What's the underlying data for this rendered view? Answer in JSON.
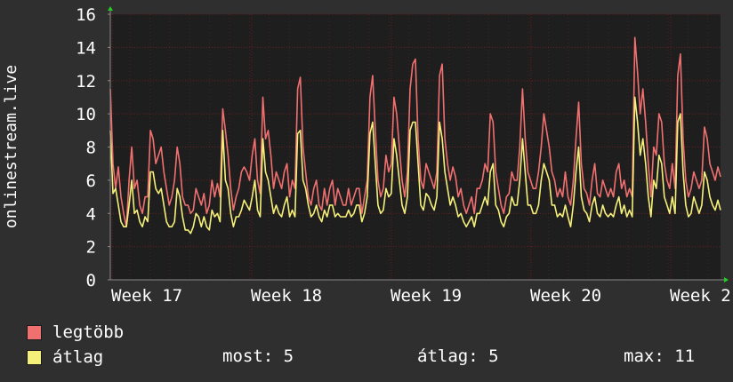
{
  "chart_data": {
    "type": "line",
    "ylabel": "onlinestream.live",
    "ylim": [
      0,
      16
    ],
    "y_ticks": [
      "0",
      "2",
      "4",
      "6",
      "8",
      "10",
      "12",
      "14",
      "16"
    ],
    "x_ticks": [
      "Week 17",
      "Week 18",
      "Week 19",
      "Week 20",
      "Week 2"
    ],
    "grid": true,
    "background": "#1e1e1e",
    "grid_color": "#6a1f1f",
    "axis_color": "#8a8a8a",
    "series": [
      {
        "name": "legtöbb",
        "color": "#f07070",
        "values": [
          11.5,
          7,
          5.5,
          6.8,
          5,
          4,
          3.2,
          6,
          8,
          5.5,
          6,
          4.5,
          4,
          5,
          5,
          9,
          8.5,
          7,
          7.5,
          8,
          6.5,
          5.5,
          4.5,
          5,
          6,
          8,
          7,
          5,
          4.5,
          4.5,
          4,
          4.2,
          5.5,
          5,
          4.5,
          5.2,
          4,
          4.5,
          6,
          5,
          5.8,
          5,
          10.3,
          9,
          7.5,
          5.5,
          4.2,
          5,
          5.5,
          6.5,
          6.8,
          6.5,
          6,
          7.5,
          8.5,
          6,
          5.2,
          11,
          8.5,
          9,
          7.5,
          5.5,
          6.5,
          6,
          5.5,
          6.5,
          7,
          5,
          6,
          5.5,
          11.5,
          12.2,
          8,
          6.5,
          5,
          4.5,
          5.5,
          6,
          4.5,
          4.2,
          5.5,
          4.5,
          5.5,
          6,
          4.5,
          5.5,
          5,
          4.5,
          4.5,
          5.5,
          4.5,
          5,
          5.5,
          5.5,
          4,
          5,
          6,
          11,
          12.3,
          9,
          6,
          5,
          5.5,
          7.5,
          6.5,
          7,
          11,
          10,
          8,
          6,
          5,
          6.5,
          11.5,
          13,
          13.3,
          8.5,
          6,
          5.5,
          7,
          6.5,
          6,
          5.5,
          6.5,
          12.3,
          13,
          8.5,
          7,
          6,
          6.8,
          6.2,
          5,
          5.5,
          4.5,
          4,
          4.5,
          5,
          4,
          5.5,
          5.5,
          6,
          7,
          6.5,
          10,
          9.5,
          6.5,
          5.5,
          4.5,
          4,
          5,
          5.2,
          6.5,
          6,
          6,
          8,
          11.5,
          8.5,
          6.5,
          6,
          5.5,
          5.5,
          6.5,
          8,
          10,
          9,
          8,
          6.5,
          6,
          5,
          5.5,
          5,
          6.5,
          5,
          4.5,
          6,
          8.5,
          10.7,
          7,
          5.5,
          5.2,
          4.5,
          6,
          7,
          5.2,
          5,
          6,
          5.5,
          5,
          5.5,
          5,
          6.5,
          7,
          5.5,
          6,
          5,
          5.5,
          5,
          14.6,
          12.5,
          10,
          11.5,
          9.5,
          7,
          5,
          8,
          7.5,
          10,
          9.5,
          7,
          6,
          5.5,
          7,
          5.5,
          12.3,
          13.6,
          8.5,
          6,
          5,
          5.5,
          6.5,
          6,
          5.5,
          6,
          9.2,
          8.5,
          7,
          6.5,
          6,
          6.8,
          6.2
        ]
      },
      {
        "name": "átlag",
        "color": "#f5f07a",
        "values": [
          9,
          5.2,
          5.5,
          4.5,
          3.5,
          3.2,
          3.2,
          4.5,
          6,
          4,
          4.2,
          3.5,
          3.2,
          3.8,
          3.5,
          6.5,
          6.5,
          5.5,
          5.2,
          5.5,
          4.5,
          3.5,
          3.2,
          3.2,
          3.5,
          5.5,
          5,
          3.8,
          3,
          3,
          2.8,
          3.2,
          4,
          3.8,
          3.2,
          3.8,
          3.2,
          3,
          4.2,
          3.8,
          4,
          3.5,
          9,
          6,
          5.5,
          4,
          3.2,
          3.8,
          3.8,
          4.2,
          4.8,
          4.5,
          4.2,
          5,
          6,
          4.2,
          3.8,
          8.5,
          6.5,
          6,
          5,
          4,
          4.5,
          4,
          3.8,
          4.5,
          5,
          3.8,
          4.2,
          3.8,
          8.8,
          9,
          6,
          5.5,
          4.5,
          3.8,
          4,
          4.5,
          3.8,
          3.5,
          4.2,
          3.8,
          4.5,
          4.5,
          3.8,
          4,
          3.8,
          3.8,
          3.8,
          4.2,
          3.8,
          4,
          4.5,
          4.5,
          3.5,
          4,
          5,
          8.8,
          9.5,
          7,
          4.5,
          4,
          4.2,
          5.5,
          5,
          5.2,
          8.5,
          7.5,
          6,
          4.5,
          4,
          5,
          9,
          9.5,
          9.5,
          7,
          4.5,
          4.2,
          5.2,
          5,
          4.5,
          4.2,
          5,
          9.5,
          8.5,
          6.5,
          5.5,
          4.5,
          5,
          4.5,
          3.8,
          4,
          3.5,
          3.2,
          3.5,
          3.8,
          3.2,
          4,
          4,
          4.5,
          5,
          4.5,
          6.5,
          7,
          4.5,
          4.2,
          3.5,
          3.2,
          3.8,
          4,
          5,
          4.5,
          4.5,
          6,
          8.5,
          6.5,
          4.5,
          4.5,
          4,
          4,
          4.5,
          6,
          7,
          6.5,
          6,
          4.5,
          4.5,
          3.8,
          4,
          3.8,
          4.5,
          3.8,
          3.2,
          4.5,
          6.5,
          8,
          5,
          4.2,
          4,
          3.5,
          4.5,
          5,
          4,
          3.8,
          4.5,
          4,
          3.8,
          4,
          3.8,
          4.5,
          5,
          4,
          4.5,
          3.8,
          4.2,
          3.8,
          11,
          9.5,
          7.5,
          8.5,
          7,
          5,
          3.8,
          6,
          5.5,
          7.5,
          7,
          5,
          4.5,
          4,
          5,
          4,
          9.5,
          10,
          6.5,
          4.5,
          3.8,
          4,
          5,
          4.5,
          4,
          4.5,
          6.5,
          6,
          5,
          4.5,
          4.2,
          4.8,
          4.2
        ]
      }
    ]
  },
  "legend": [
    {
      "label": "legtöbb",
      "color": "#f07070"
    },
    {
      "label": "átlag",
      "color": "#f5f07a"
    }
  ],
  "stats": {
    "now": "most: 5",
    "avg": "átlag: 5",
    "max": "max: 11"
  }
}
